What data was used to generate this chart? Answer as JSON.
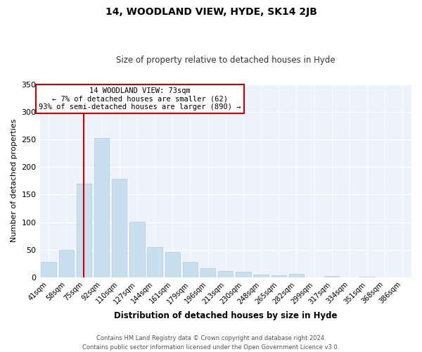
{
  "title": "14, WOODLAND VIEW, HYDE, SK14 2JB",
  "subtitle": "Size of property relative to detached houses in Hyde",
  "xlabel": "Distribution of detached houses by size in Hyde",
  "ylabel": "Number of detached properties",
  "bar_color": "#c8dff0",
  "bar_edge_color": "#b0cce0",
  "categories": [
    "41sqm",
    "58sqm",
    "75sqm",
    "92sqm",
    "110sqm",
    "127sqm",
    "144sqm",
    "161sqm",
    "179sqm",
    "196sqm",
    "213sqm",
    "230sqm",
    "248sqm",
    "265sqm",
    "282sqm",
    "299sqm",
    "317sqm",
    "334sqm",
    "351sqm",
    "368sqm",
    "386sqm"
  ],
  "values": [
    28,
    50,
    170,
    252,
    178,
    101,
    55,
    46,
    28,
    17,
    11,
    10,
    5,
    4,
    6,
    0,
    2,
    0,
    1,
    0,
    0
  ],
  "ylim": [
    0,
    350
  ],
  "yticks": [
    0,
    50,
    100,
    150,
    200,
    250,
    300,
    350
  ],
  "vline_x_index": 2,
  "vline_color": "#cc0000",
  "annotation_title": "14 WOODLAND VIEW: 73sqm",
  "annotation_line1": "← 7% of detached houses are smaller (62)",
  "annotation_line2": "93% of semi-detached houses are larger (890) →",
  "annotation_box_color": "#ffffff",
  "annotation_box_edge": "#cc0000",
  "footer_line1": "Contains HM Land Registry data © Crown copyright and database right 2024.",
  "footer_line2": "Contains public sector information licensed under the Open Government Licence v3.0.",
  "plot_bg_color": "#eef2fb",
  "title_fontsize": 10,
  "subtitle_fontsize": 8.5
}
